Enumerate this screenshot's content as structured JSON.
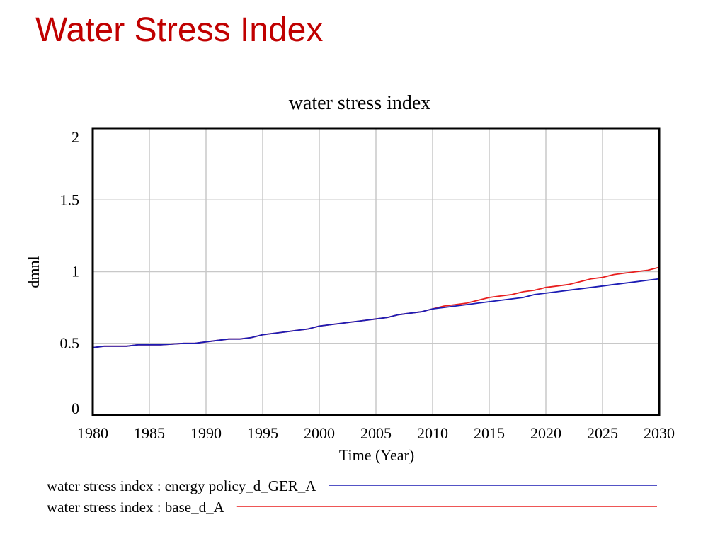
{
  "slide": {
    "title": "Water Stress Index"
  },
  "chart_data": {
    "type": "line",
    "title": "water stress index",
    "xlabel": "Time (Year)",
    "ylabel": "dmnl",
    "xlim": [
      1980,
      2030
    ],
    "ylim": [
      0,
      2
    ],
    "x_ticks": [
      1980,
      1985,
      1990,
      1995,
      2000,
      2005,
      2010,
      2015,
      2020,
      2025,
      2030
    ],
    "y_ticks": [
      0,
      0.5,
      1,
      1.5,
      2
    ],
    "y_tick_labels": [
      "0",
      "0.5",
      "1",
      "1.5",
      "2"
    ],
    "grid": true,
    "legend_position": "bottom",
    "series": [
      {
        "name": "water stress index : energy policy_d_GER_A",
        "color": "#1c1cb4",
        "x": [
          1980,
          1981,
          1983,
          1984,
          1986,
          1988,
          1989,
          1990,
          1992,
          1993,
          1994,
          1995,
          1997,
          1998,
          1999,
          2000,
          2001,
          2003,
          2004,
          2005,
          2006,
          2007,
          2008,
          2009,
          2010,
          2011,
          2012,
          2013,
          2014,
          2015,
          2016,
          2017,
          2018,
          2019,
          2020,
          2021,
          2022,
          2023,
          2024,
          2025,
          2026,
          2027,
          2028,
          2029,
          2030
        ],
        "values": [
          0.47,
          0.48,
          0.48,
          0.49,
          0.49,
          0.5,
          0.5,
          0.51,
          0.53,
          0.53,
          0.54,
          0.56,
          0.58,
          0.59,
          0.6,
          0.62,
          0.63,
          0.65,
          0.66,
          0.67,
          0.68,
          0.7,
          0.71,
          0.72,
          0.74,
          0.75,
          0.76,
          0.77,
          0.78,
          0.79,
          0.8,
          0.81,
          0.82,
          0.84,
          0.85,
          0.86,
          0.87,
          0.88,
          0.89,
          0.9,
          0.91,
          0.92,
          0.93,
          0.94,
          0.95
        ]
      },
      {
        "name": "water stress index : base_d_A",
        "color": "#e81e1e",
        "x": [
          1980,
          1981,
          1983,
          1984,
          1986,
          1988,
          1989,
          1990,
          1992,
          1993,
          1994,
          1995,
          1997,
          1998,
          1999,
          2000,
          2001,
          2003,
          2004,
          2005,
          2006,
          2007,
          2008,
          2009,
          2010,
          2011,
          2012,
          2013,
          2014,
          2015,
          2016,
          2017,
          2018,
          2019,
          2020,
          2021,
          2022,
          2023,
          2024,
          2025,
          2026,
          2027,
          2028,
          2029,
          2030
        ],
        "values": [
          0.47,
          0.48,
          0.48,
          0.49,
          0.49,
          0.5,
          0.5,
          0.51,
          0.53,
          0.53,
          0.54,
          0.56,
          0.58,
          0.59,
          0.6,
          0.62,
          0.63,
          0.65,
          0.66,
          0.67,
          0.68,
          0.7,
          0.71,
          0.72,
          0.74,
          0.76,
          0.77,
          0.78,
          0.8,
          0.82,
          0.83,
          0.84,
          0.86,
          0.87,
          0.89,
          0.9,
          0.91,
          0.93,
          0.95,
          0.96,
          0.98,
          0.99,
          1.0,
          1.01,
          1.03
        ]
      }
    ]
  }
}
